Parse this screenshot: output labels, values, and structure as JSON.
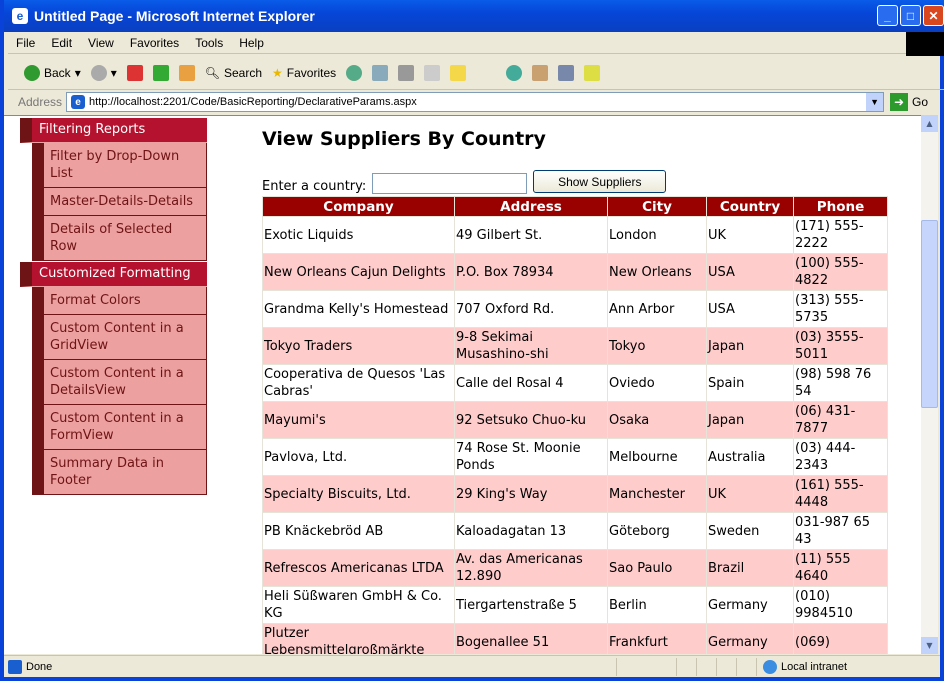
{
  "window": {
    "title": "Untitled Page - Microsoft Internet Explorer"
  },
  "menu": [
    "File",
    "Edit",
    "View",
    "Favorites",
    "Tools",
    "Help"
  ],
  "toolbar": {
    "back": "Back",
    "search": "Search",
    "favorites": "Favorites"
  },
  "address": {
    "label": "Address",
    "url": "http://localhost:2201/Code/BasicReporting/DeclarativeParams.aspx",
    "go": "Go"
  },
  "sidebar": {
    "sections": [
      {
        "title": "Filtering Reports",
        "items": [
          "Filter by Drop-Down List",
          "Master-Details-Details",
          "Details of Selected Row"
        ]
      },
      {
        "title": "Customized Formatting",
        "items": [
          "Format Colors",
          "Custom Content in a GridView",
          "Custom Content in a DetailsView",
          "Custom Content in a FormView",
          "Summary Data in Footer"
        ]
      }
    ]
  },
  "main": {
    "title": "View Suppliers By Country",
    "filter_label": "Enter a country:",
    "filter_value": "",
    "button": "Show Suppliers",
    "columns": [
      "Company",
      "Address",
      "City",
      "Country",
      "Phone"
    ],
    "rows": [
      [
        "Exotic Liquids",
        "49 Gilbert St.",
        "London",
        "UK",
        "(171) 555-2222"
      ],
      [
        "New Orleans Cajun Delights",
        "P.O. Box 78934",
        "New Orleans",
        "USA",
        "(100) 555-4822"
      ],
      [
        "Grandma Kelly's Homestead",
        "707 Oxford Rd.",
        "Ann Arbor",
        "USA",
        "(313) 555-5735"
      ],
      [
        "Tokyo Traders",
        "9-8 Sekimai Musashino-shi",
        "Tokyo",
        "Japan",
        "(03) 3555-5011"
      ],
      [
        "Cooperativa de Quesos 'Las Cabras'",
        "Calle del Rosal 4",
        "Oviedo",
        "Spain",
        "(98) 598 76 54"
      ],
      [
        "Mayumi's",
        "92 Setsuko Chuo-ku",
        "Osaka",
        "Japan",
        "(06) 431-7877"
      ],
      [
        "Pavlova, Ltd.",
        "74 Rose St. Moonie Ponds",
        "Melbourne",
        "Australia",
        "(03) 444-2343"
      ],
      [
        "Specialty Biscuits, Ltd.",
        "29 King's Way",
        "Manchester",
        "UK",
        "(161) 555-4448"
      ],
      [
        "PB Knäckebröd AB",
        "Kaloadagatan 13",
        "Göteborg",
        "Sweden",
        "031-987 65 43"
      ],
      [
        "Refrescos Americanas LTDA",
        "Av. das Americanas 12.890",
        "Sao Paulo",
        "Brazil",
        "(11) 555 4640"
      ],
      [
        "Heli Süßwaren GmbH & Co. KG",
        "Tiergartenstraße 5",
        "Berlin",
        "Germany",
        "(010) 9984510"
      ],
      [
        "Plutzer Lebensmittelgroßmärkte",
        "Bogenallee 51",
        "Frankfurt",
        "Germany",
        "(069)"
      ]
    ]
  },
  "status": {
    "text": "Done",
    "zone": "Local intranet"
  },
  "colors": {
    "header": "#990000",
    "alt_row": "#ffcccc",
    "nav_section": "#b5122f",
    "nav_item": "#eca0a0",
    "nav_dark": "#6f1416"
  }
}
